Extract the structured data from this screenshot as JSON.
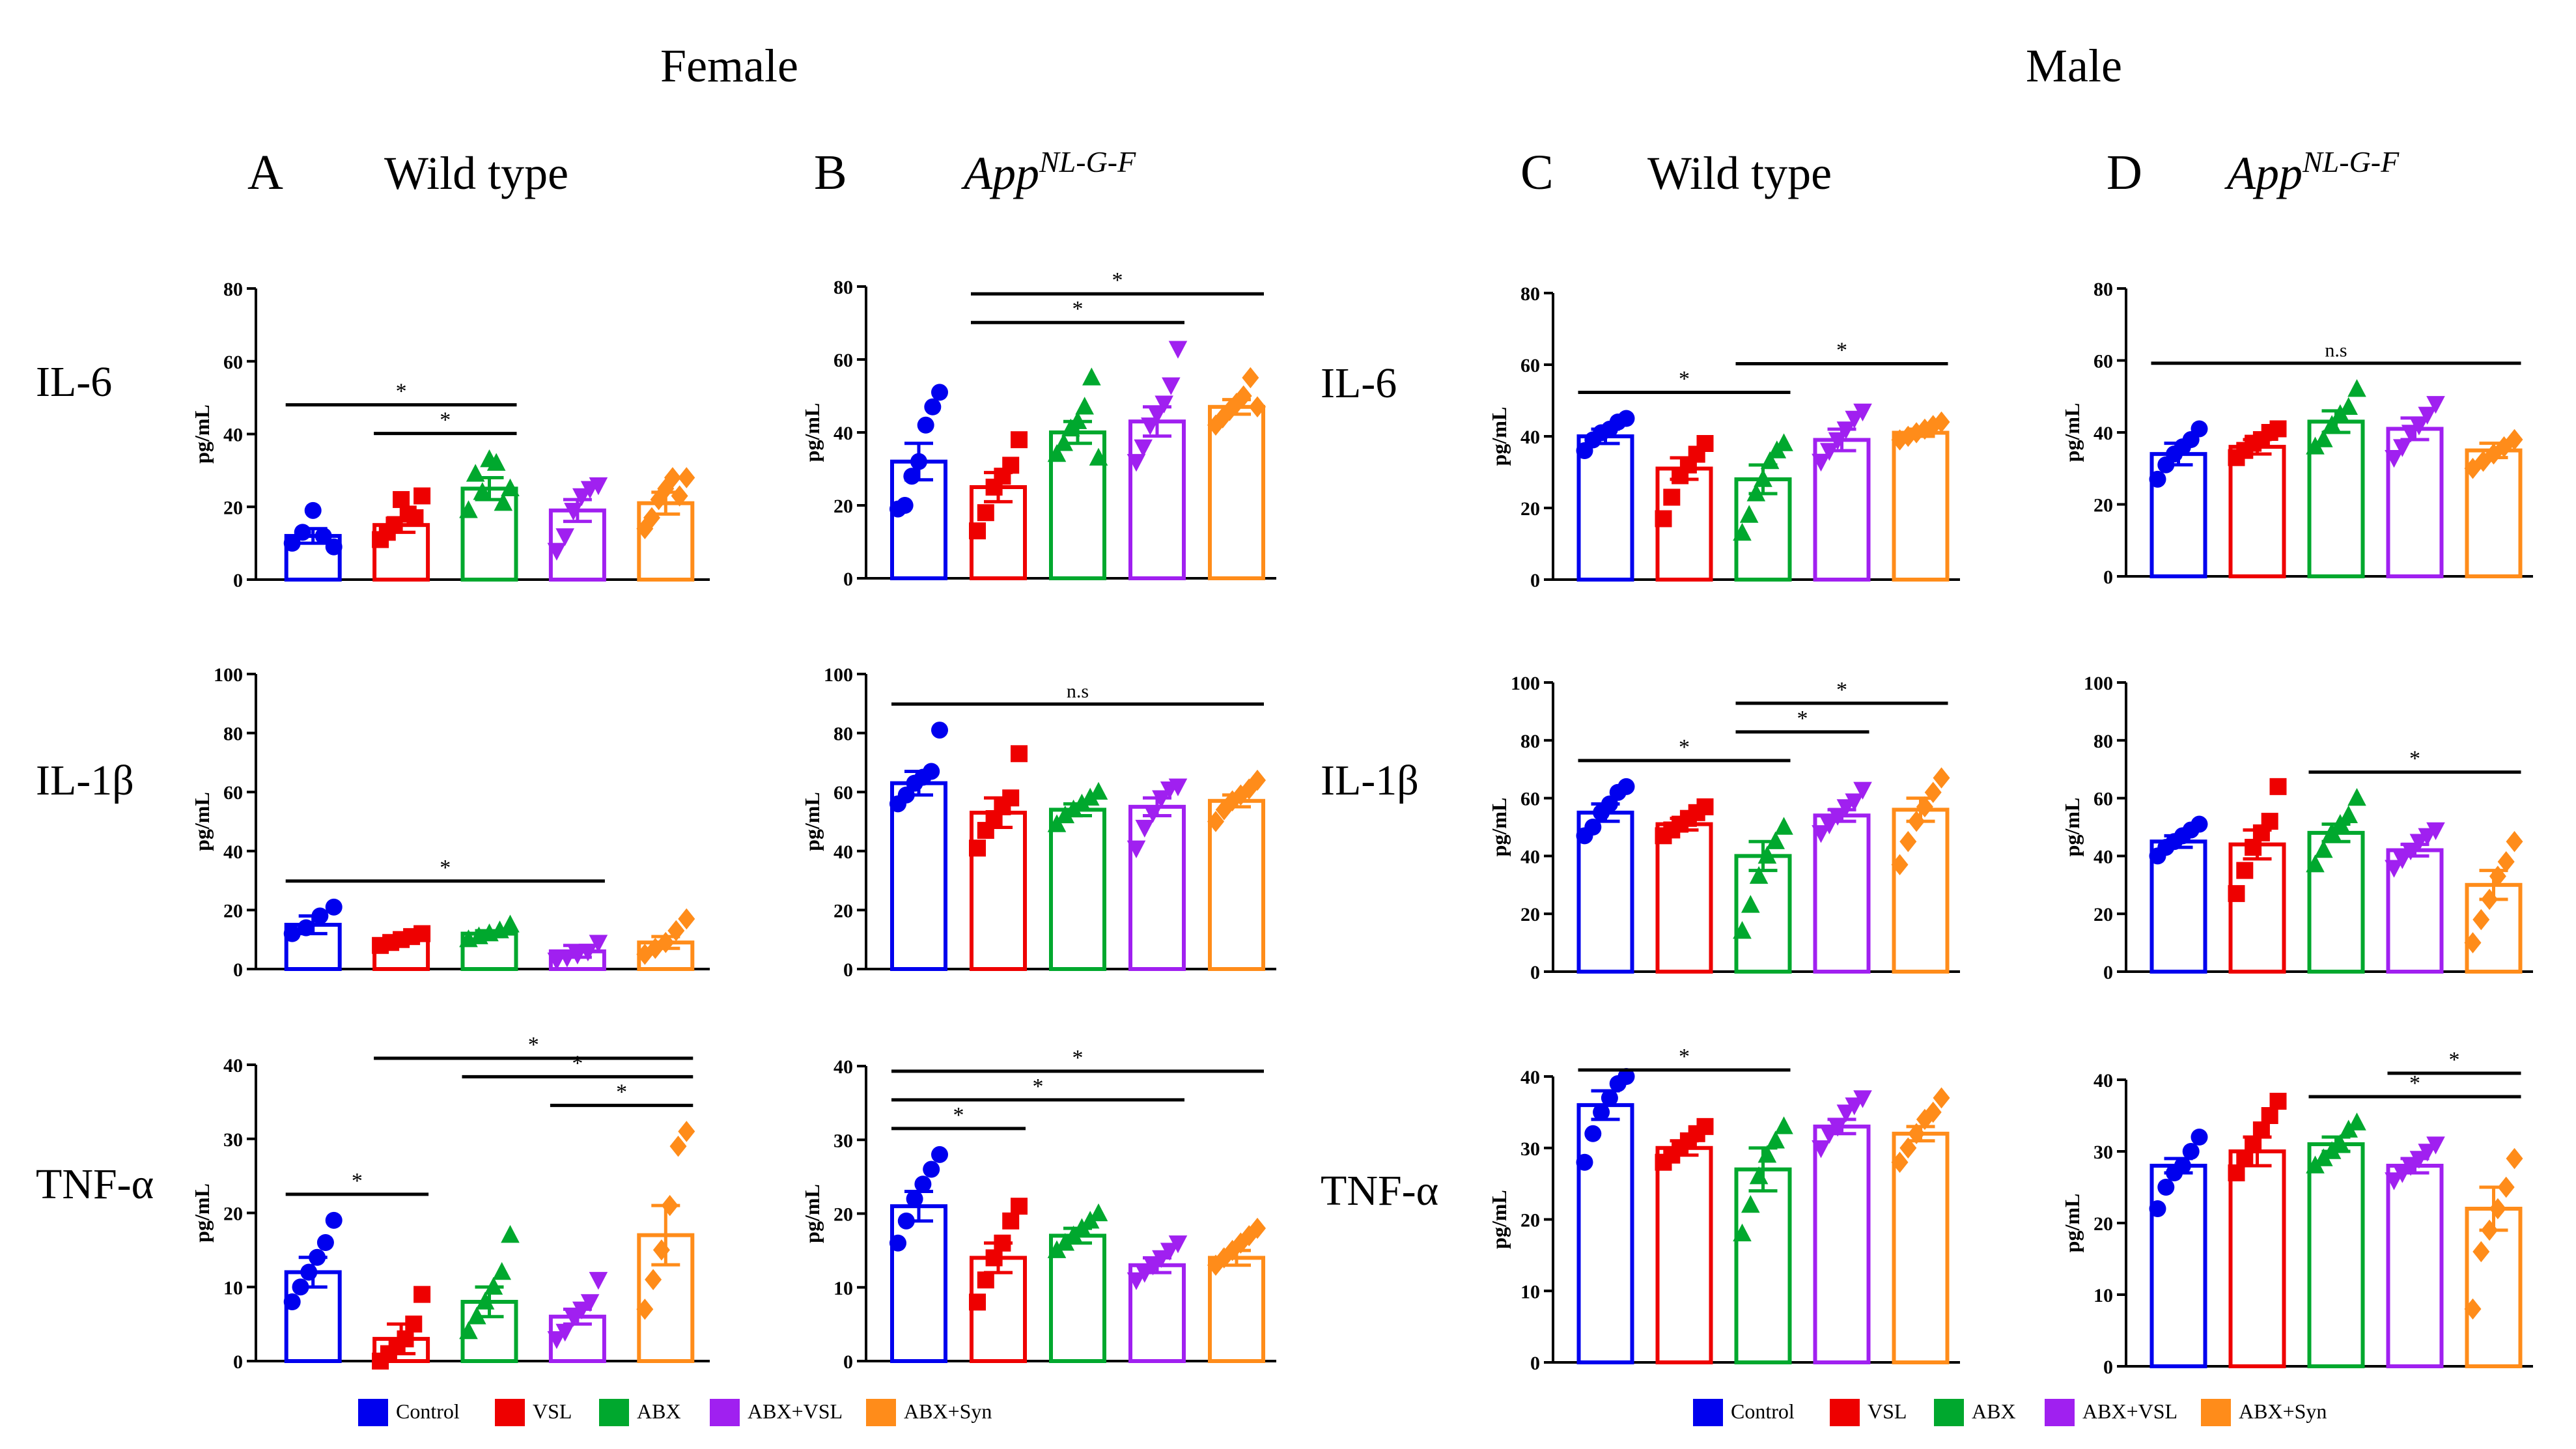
{
  "sex_headers": [
    "Female",
    "Male"
  ],
  "columns": [
    {
      "letter": "A",
      "title": "Wild type",
      "sup": ""
    },
    {
      "letter": "B",
      "title": "App",
      "sup": "NL-G-F"
    },
    {
      "letter": "C",
      "title": "Wild type",
      "sup": ""
    },
    {
      "letter": "D",
      "title": "App",
      "sup": "NL-G-F"
    }
  ],
  "row_labels": [
    "IL-6",
    "IL-1β",
    "TNF-α"
  ],
  "colors": {
    "Control": "#0000ee",
    "VSL": "#ee0000",
    "ABX": "#00a82e",
    "ABX+VSL": "#a020f0",
    "ABX+Syn": "#ff8c1a"
  },
  "legend": {
    "items": [
      "Control",
      "VSL",
      "ABX",
      "ABX+VSL",
      "ABX+Syn"
    ]
  },
  "chart_data": [
    {
      "type": "bar",
      "panel": "A-IL-6",
      "ylabel": "pg/mL",
      "ylim": [
        0,
        80
      ],
      "yticks": [
        0,
        20,
        40,
        60,
        80
      ],
      "categories": [
        "Control",
        "VSL",
        "ABX",
        "ABX+VSL",
        "ABX+Syn"
      ],
      "values": [
        12,
        15,
        25,
        19,
        21
      ],
      "sem": [
        2,
        2,
        3,
        3,
        3
      ],
      "points": [
        [
          10,
          13,
          19,
          12,
          9
        ],
        [
          11,
          13,
          15,
          22,
          18,
          17,
          23
        ],
        [
          19,
          29,
          24,
          33,
          32,
          21,
          25
        ],
        [
          8,
          12,
          19,
          23,
          25,
          26
        ],
        [
          14,
          17,
          22,
          25,
          28,
          23,
          28
        ]
      ],
      "sig": [
        {
          "from": 1,
          "to": 2,
          "label": "*"
        },
        {
          "from": 0,
          "to": 2,
          "label": "*"
        }
      ]
    },
    {
      "type": "bar",
      "panel": "B-IL-6",
      "ylabel": "pg/mL",
      "ylim": [
        0,
        80
      ],
      "yticks": [
        0,
        20,
        40,
        60,
        80
      ],
      "categories": [
        "Control",
        "VSL",
        "ABX",
        "ABX+VSL",
        "ABX+Syn"
      ],
      "values": [
        32,
        25,
        40,
        43,
        47
      ],
      "sem": [
        5,
        4,
        3,
        4,
        2
      ],
      "points": [
        [
          19,
          20,
          28,
          32,
          42,
          47,
          51
        ],
        [
          13,
          18,
          25,
          28,
          31,
          38
        ],
        [
          34,
          37,
          41,
          43,
          47,
          55,
          33
        ],
        [
          32,
          36,
          42,
          45,
          48,
          53,
          63
        ],
        [
          42,
          44,
          46,
          48,
          50,
          55,
          47
        ]
      ],
      "sig": [
        {
          "from": 1,
          "to": 3,
          "label": "*"
        },
        {
          "from": 1,
          "to": 4,
          "label": "*"
        }
      ]
    },
    {
      "type": "bar",
      "panel": "C-IL-6",
      "ylabel": "pg/mL",
      "ylim": [
        0,
        80
      ],
      "yticks": [
        0,
        20,
        40,
        60,
        80
      ],
      "categories": [
        "Control",
        "VSL",
        "ABX",
        "ABX+VSL",
        "ABX+Syn"
      ],
      "values": [
        40,
        31,
        28,
        39,
        41
      ],
      "sem": [
        2,
        3,
        4,
        3,
        1
      ],
      "points": [
        [
          36,
          39,
          41,
          42,
          44,
          45
        ],
        [
          17,
          23,
          29,
          32,
          35,
          38
        ],
        [
          13,
          18,
          24,
          28,
          33,
          36,
          38
        ],
        [
          33,
          36,
          39,
          42,
          45,
          47
        ],
        [
          39,
          40,
          41,
          42,
          43,
          44
        ]
      ],
      "sig": [
        {
          "from": 0,
          "to": 2,
          "label": "*"
        },
        {
          "from": 2,
          "to": 4,
          "label": "*"
        }
      ]
    },
    {
      "type": "bar",
      "panel": "D-IL-6",
      "ylabel": "pg/mL",
      "ylim": [
        0,
        80
      ],
      "yticks": [
        0,
        20,
        40,
        60,
        80
      ],
      "categories": [
        "Control",
        "VSL",
        "ABX",
        "ABX+VSL",
        "ABX+Syn"
      ],
      "values": [
        34,
        36,
        43,
        41,
        35
      ],
      "sem": [
        3,
        2,
        3,
        3,
        2
      ],
      "points": [
        [
          27,
          31,
          34,
          36,
          38,
          41
        ],
        [
          33,
          35,
          37,
          38,
          40,
          41
        ],
        [
          36,
          38,
          42,
          45,
          47,
          52
        ],
        [
          33,
          36,
          40,
          42,
          45,
          48
        ],
        [
          30,
          32,
          34,
          36,
          38
        ]
      ],
      "sig": [
        {
          "from": 0,
          "to": 4,
          "label": "n.s"
        }
      ]
    },
    {
      "type": "bar",
      "panel": "A-IL-1β",
      "ylabel": "pg/mL",
      "ylim": [
        0,
        100
      ],
      "yticks": [
        0,
        20,
        40,
        60,
        80,
        100
      ],
      "categories": [
        "Control",
        "VSL",
        "ABX",
        "ABX+VSL",
        "ABX+Syn"
      ],
      "values": [
        15,
        10,
        12,
        6,
        9
      ],
      "sem": [
        3,
        1,
        1,
        2,
        2
      ],
      "points": [
        [
          12,
          14,
          18,
          21
        ],
        [
          8,
          9,
          10,
          11,
          12
        ],
        [
          10,
          11,
          12,
          13,
          15
        ],
        [
          3,
          4,
          5,
          6,
          9
        ],
        [
          5,
          7,
          9,
          13,
          17
        ]
      ],
      "sig": [
        {
          "from": 0,
          "to": 3,
          "label": "*"
        }
      ]
    },
    {
      "type": "bar",
      "panel": "B-IL-1β",
      "ylabel": "pg/mL",
      "ylim": [
        0,
        100
      ],
      "yticks": [
        0,
        20,
        40,
        60,
        80,
        100
      ],
      "categories": [
        "Control",
        "VSL",
        "ABX",
        "ABX+VSL",
        "ABX+Syn"
      ],
      "values": [
        63,
        53,
        54,
        55,
        57
      ],
      "sem": [
        4,
        5,
        2,
        3,
        2
      ],
      "points": [
        [
          56,
          59,
          63,
          65,
          67,
          81
        ],
        [
          41,
          47,
          51,
          55,
          58,
          73
        ],
        [
          49,
          52,
          54,
          56,
          58,
          60
        ],
        [
          41,
          48,
          53,
          58,
          61,
          62
        ],
        [
          50,
          54,
          57,
          59,
          61,
          64
        ]
      ],
      "sig": [
        {
          "from": 0,
          "to": 4,
          "label": "n.s"
        }
      ]
    },
    {
      "type": "bar",
      "panel": "C-IL-1β",
      "ylabel": "pg/mL",
      "ylim": [
        0,
        100
      ],
      "yticks": [
        0,
        20,
        40,
        60,
        80,
        100
      ],
      "categories": [
        "Control",
        "VSL",
        "ABX",
        "ABX+VSL",
        "ABX+Syn"
      ],
      "values": [
        55,
        51,
        40,
        54,
        56
      ],
      "sem": [
        3,
        2,
        5,
        2,
        4
      ],
      "points": [
        [
          47,
          50,
          55,
          58,
          62,
          64
        ],
        [
          47,
          49,
          51,
          53,
          55,
          57
        ],
        [
          14,
          23,
          33,
          40,
          45,
          50
        ],
        [
          48,
          51,
          54,
          57,
          59,
          63
        ],
        [
          37,
          45,
          52,
          57,
          62,
          67
        ]
      ],
      "sig": [
        {
          "from": 0,
          "to": 2,
          "label": "*"
        },
        {
          "from": 2,
          "to": 3,
          "label": "*"
        },
        {
          "from": 2,
          "to": 4,
          "label": "*"
        }
      ]
    },
    {
      "type": "bar",
      "panel": "D-IL-1β",
      "ylabel": "pg/mL",
      "ylim": [
        0,
        100
      ],
      "yticks": [
        0,
        20,
        40,
        60,
        80,
        100
      ],
      "categories": [
        "Control",
        "VSL",
        "ABX",
        "ABX+VSL",
        "ABX+Syn"
      ],
      "values": [
        45,
        44,
        48,
        42,
        30
      ],
      "sem": [
        2,
        5,
        3,
        2,
        5
      ],
      "points": [
        [
          40,
          43,
          45,
          47,
          49,
          51
        ],
        [
          27,
          35,
          43,
          48,
          52,
          64
        ],
        [
          37,
          42,
          48,
          51,
          54,
          60
        ],
        [
          36,
          39,
          42,
          45,
          47,
          49
        ],
        [
          10,
          18,
          25,
          33,
          38,
          45
        ]
      ],
      "sig": [
        {
          "from": 2,
          "to": 4,
          "label": "*"
        }
      ]
    },
    {
      "type": "bar",
      "panel": "A-TNF-α",
      "ylabel": "pg/mL",
      "ylim": [
        0,
        40
      ],
      "yticks": [
        0,
        10,
        20,
        30,
        40
      ],
      "categories": [
        "Control",
        "VSL",
        "ABX",
        "ABX+VSL",
        "ABX+Syn"
      ],
      "values": [
        12,
        3,
        8,
        6,
        17
      ],
      "sem": [
        2,
        2,
        2,
        1,
        4
      ],
      "points": [
        [
          8,
          10,
          12,
          14,
          16,
          19
        ],
        [
          0,
          1,
          2,
          3,
          5,
          9
        ],
        [
          4,
          6,
          8,
          10,
          12,
          17
        ],
        [
          3,
          4,
          6,
          7,
          8,
          11
        ],
        [
          7,
          11,
          15,
          21,
          29,
          31
        ]
      ],
      "sig": [
        {
          "from": 3,
          "to": 4,
          "label": "*"
        },
        {
          "from": 2,
          "to": 4,
          "label": "*"
        },
        {
          "from": 1,
          "to": 4,
          "label": "*"
        },
        {
          "from": 0,
          "to": 1,
          "label": "*"
        }
      ]
    },
    {
      "type": "bar",
      "panel": "B-TNF-α",
      "ylabel": "pg/mL",
      "ylim": [
        0,
        40
      ],
      "yticks": [
        0,
        10,
        20,
        30,
        40
      ],
      "categories": [
        "Control",
        "VSL",
        "ABX",
        "ABX+VSL",
        "ABX+Syn"
      ],
      "values": [
        21,
        14,
        17,
        13,
        14
      ],
      "sem": [
        2,
        2,
        1,
        1,
        1
      ],
      "points": [
        [
          16,
          19,
          22,
          24,
          26,
          28
        ],
        [
          8,
          11,
          14,
          16,
          19,
          21
        ],
        [
          15,
          16,
          17,
          18,
          19,
          20
        ],
        [
          11,
          12,
          13,
          14,
          15,
          16
        ],
        [
          13,
          14,
          15,
          16,
          17,
          18
        ]
      ],
      "sig": [
        {
          "from": 0,
          "to": 1,
          "label": "*"
        },
        {
          "from": 0,
          "to": 3,
          "label": "*"
        },
        {
          "from": 0,
          "to": 4,
          "label": "*"
        }
      ]
    },
    {
      "type": "bar",
      "panel": "C-TNF-α",
      "ylabel": "pg/mL",
      "ylim": [
        0,
        40
      ],
      "yticks": [
        0,
        10,
        20,
        30,
        40
      ],
      "categories": [
        "Control",
        "VSL",
        "ABX",
        "ABX+VSL",
        "ABX+Syn"
      ],
      "values": [
        36,
        30,
        27,
        33,
        32
      ],
      "sem": [
        2,
        1,
        3,
        1,
        1
      ],
      "points": [
        [
          28,
          32,
          35,
          37,
          39,
          40
        ],
        [
          28,
          29,
          30,
          31,
          32,
          33
        ],
        [
          18,
          22,
          26,
          29,
          31,
          33
        ],
        [
          30,
          32,
          33,
          35,
          36,
          37
        ],
        [
          28,
          30,
          32,
          34,
          35,
          37
        ]
      ],
      "sig": [
        {
          "from": 0,
          "to": 2,
          "label": "*"
        }
      ]
    },
    {
      "type": "bar",
      "panel": "D-TNF-α",
      "ylabel": "pg/mL",
      "ylim": [
        0,
        40
      ],
      "yticks": [
        0,
        10,
        20,
        30,
        40
      ],
      "categories": [
        "Control",
        "VSL",
        "ABX",
        "ABX+VSL",
        "ABX+Syn"
      ],
      "values": [
        28,
        30,
        31,
        28,
        22
      ],
      "sem": [
        1,
        2,
        1,
        1,
        3
      ],
      "points": [
        [
          22,
          25,
          27,
          28,
          30,
          32
        ],
        [
          27,
          29,
          31,
          33,
          35,
          37
        ],
        [
          28,
          29,
          30,
          31,
          33,
          34
        ],
        [
          26,
          27,
          28,
          29,
          30,
          31
        ],
        [
          8,
          16,
          19,
          22,
          25,
          29
        ]
      ],
      "sig": [
        {
          "from": 2,
          "to": 4,
          "label": "*"
        },
        {
          "from": 3,
          "to": 4,
          "label": "*"
        }
      ]
    }
  ]
}
